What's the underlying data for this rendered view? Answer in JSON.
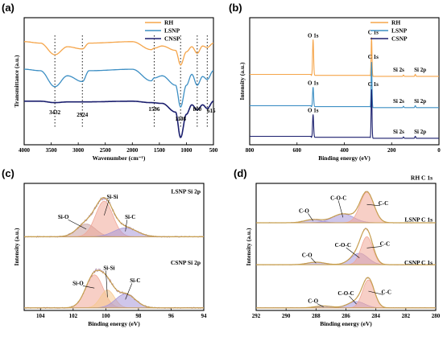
{
  "chart_data": [
    {
      "panel": "(a)",
      "type": "line",
      "xlabel": "Wavenumber (cm⁻¹)",
      "ylabel": "Transmittance (a.u.)",
      "xlim": [
        4000,
        500
      ],
      "xticks": [
        4000,
        3500,
        3000,
        2500,
        2000,
        1500,
        1000,
        500
      ],
      "legend_position": "top-right",
      "series": [
        {
          "name": "RH",
          "color": "#F5A54A",
          "offset": 0.8,
          "points": [
            [
              4000,
              0.02
            ],
            [
              3700,
              0.0
            ],
            [
              3432,
              -0.16
            ],
            [
              3200,
              -0.05
            ],
            [
              2924,
              -0.08
            ],
            [
              2800,
              0.0
            ],
            [
              2000,
              0.02
            ],
            [
              1650,
              -0.09
            ],
            [
              1596,
              -0.07
            ],
            [
              1450,
              -0.04
            ],
            [
              1200,
              -0.1
            ],
            [
              1108,
              -0.3
            ],
            [
              1000,
              -0.12
            ],
            [
              900,
              -0.05
            ],
            [
              800,
              -0.14
            ],
            [
              700,
              -0.04
            ],
            [
              615,
              -0.06
            ],
            [
              500,
              0.0
            ]
          ]
        },
        {
          "name": "LSNP",
          "color": "#3D8FC4",
          "offset": 0.42,
          "points": [
            [
              4000,
              0.02
            ],
            [
              3700,
              0.0
            ],
            [
              3432,
              -0.22
            ],
            [
              3200,
              -0.07
            ],
            [
              2924,
              -0.15
            ],
            [
              2800,
              0.0
            ],
            [
              2000,
              0.02
            ],
            [
              1650,
              -0.14
            ],
            [
              1596,
              -0.1
            ],
            [
              1450,
              -0.07
            ],
            [
              1200,
              -0.2
            ],
            [
              1108,
              -0.5
            ],
            [
              1000,
              -0.2
            ],
            [
              900,
              -0.05
            ],
            [
              800,
              -0.2
            ],
            [
              700,
              -0.08
            ],
            [
              615,
              -0.12
            ],
            [
              500,
              0.0
            ]
          ]
        },
        {
          "name": "CNSP",
          "color": "#1B1F6E",
          "offset": 0.0,
          "points": [
            [
              4000,
              0.0
            ],
            [
              3700,
              0.0
            ],
            [
              3432,
              -0.02
            ],
            [
              3200,
              -0.01
            ],
            [
              2924,
              -0.01
            ],
            [
              2000,
              0.0
            ],
            [
              1650,
              -0.02
            ],
            [
              1450,
              -0.03
            ],
            [
              1200,
              -0.15
            ],
            [
              1108,
              -0.5
            ],
            [
              1000,
              -0.18
            ],
            [
              900,
              -0.05
            ],
            [
              800,
              -0.12
            ],
            [
              700,
              -0.05
            ],
            [
              615,
              -0.1
            ],
            [
              500,
              0.0
            ]
          ]
        }
      ],
      "peak_lines": [
        3432,
        2924,
        1596,
        1108,
        800,
        615
      ],
      "peak_labels": [
        {
          "x": 3432,
          "text": "3432"
        },
        {
          "x": 2924,
          "text": "2924"
        },
        {
          "x": 1596,
          "text": "1596"
        },
        {
          "x": 1108,
          "text": "1108"
        },
        {
          "x": 800,
          "text": "800"
        },
        {
          "x": 615,
          "text": "615"
        }
      ]
    },
    {
      "panel": "(b)",
      "type": "line",
      "xlabel": "Binding energy (eV)",
      "ylabel": "Intensity (a.u.)",
      "xlim": [
        800,
        0
      ],
      "xticks": [
        800,
        600,
        400,
        200,
        0
      ],
      "legend_position": "top-right",
      "series": [
        {
          "name": "RH",
          "color": "#F5A54A",
          "offset": 1.0,
          "peaks": [
            [
              532,
              0.55
            ],
            [
              285,
              0.6
            ],
            [
              150,
              0.02
            ],
            [
              100,
              0.03
            ]
          ],
          "peak_labels": [
            "O 1s",
            "C 1s",
            "Si 2s",
            "Si 2p"
          ]
        },
        {
          "name": "LSNP",
          "color": "#3D8FC4",
          "offset": 0.52,
          "peaks": [
            [
              532,
              0.3
            ],
            [
              285,
              0.7
            ],
            [
              150,
              0.02
            ],
            [
              100,
              0.03
            ]
          ],
          "peak_labels": [
            "O 1s",
            "C 1s",
            "Si 2s",
            "Si 2p"
          ]
        },
        {
          "name": "CSNP",
          "color": "#1B1F6E",
          "offset": 0.05,
          "peaks": [
            [
              532,
              0.35
            ],
            [
              285,
              0.75
            ],
            [
              150,
              0.02
            ],
            [
              100,
              0.03
            ]
          ],
          "peak_labels": [
            "O 1s",
            "C 1s",
            "Si 2s",
            "Si 2p"
          ]
        }
      ]
    },
    {
      "panel": "(c)",
      "type": "line",
      "xlabel": "Binding energy (eV)",
      "ylabel": "Intensity (a.u.)",
      "xlim": [
        105,
        94
      ],
      "xticks": [
        104,
        102,
        100,
        98,
        96,
        94
      ],
      "spectra": [
        {
          "label": "LSNP Si 2p",
          "offset": 0.56,
          "components": [
            {
              "name": "Si-O",
              "center": 101.2,
              "height": 0.1,
              "width": 0.8,
              "color": "#C8A0A0"
            },
            {
              "name": "Si-Si",
              "center": 100.1,
              "height": 0.28,
              "width": 0.75,
              "color": "#F0A898"
            },
            {
              "name": "Si-C",
              "center": 98.8,
              "height": 0.07,
              "width": 1.0,
              "color": "#A898D8"
            }
          ]
        },
        {
          "label": "CSNP Si 2p",
          "offset": 0.0,
          "components": [
            {
              "name": "Si-O",
              "center": 100.7,
              "height": 0.26,
              "width": 0.75,
              "color": "#F0A898"
            },
            {
              "name": "Si-Si",
              "center": 99.9,
              "height": 0.14,
              "width": 0.6,
              "color": "#F6C890"
            },
            {
              "name": "Si-C",
              "center": 98.8,
              "height": 0.11,
              "width": 0.85,
              "color": "#A898D8"
            }
          ]
        }
      ]
    },
    {
      "panel": "(d)",
      "type": "line",
      "xlabel": "Binding energy (eV)",
      "ylabel": "Intensity (a.u.)",
      "xlim": [
        292,
        280
      ],
      "xticks": [
        292,
        290,
        288,
        286,
        284,
        282,
        280
      ],
      "spectra": [
        {
          "label": "RH     C 1s",
          "offset": 0.67,
          "components": [
            {
              "name": "C-O",
              "center": 288.2,
              "height": 0.025,
              "width": 0.8,
              "color": "#A898D8"
            },
            {
              "name": "C-O-C",
              "center": 286.2,
              "height": 0.07,
              "width": 1.0,
              "color": "#A898D8"
            },
            {
              "name": "C-C",
              "center": 284.6,
              "height": 0.24,
              "width": 0.65,
              "color": "#F0A898"
            }
          ]
        },
        {
          "label": "LSNP C 1s",
          "offset": 0.34,
          "components": [
            {
              "name": "C-O",
              "center": 288.0,
              "height": 0.02,
              "width": 0.8,
              "color": "#A898D8"
            },
            {
              "name": "C-O-C",
              "center": 285.1,
              "height": 0.09,
              "width": 0.8,
              "color": "#A898D8"
            },
            {
              "name": "C-C",
              "center": 284.6,
              "height": 0.22,
              "width": 0.55,
              "color": "#F0A898"
            }
          ]
        },
        {
          "label": "CSNP C 1s",
          "offset": 0.0,
          "components": [
            {
              "name": "C-O",
              "center": 287.5,
              "height": 0.015,
              "width": 0.8,
              "color": "#A898D8"
            },
            {
              "name": "C-O-C",
              "center": 285.3,
              "height": 0.05,
              "width": 0.8,
              "color": "#A898D8"
            },
            {
              "name": "C-C",
              "center": 284.5,
              "height": 0.22,
              "width": 0.55,
              "color": "#F0A898"
            }
          ]
        }
      ]
    }
  ],
  "colors": {
    "envelope": "#C8A050",
    "raw": "#8A5A8A",
    "axis": "#000000"
  }
}
